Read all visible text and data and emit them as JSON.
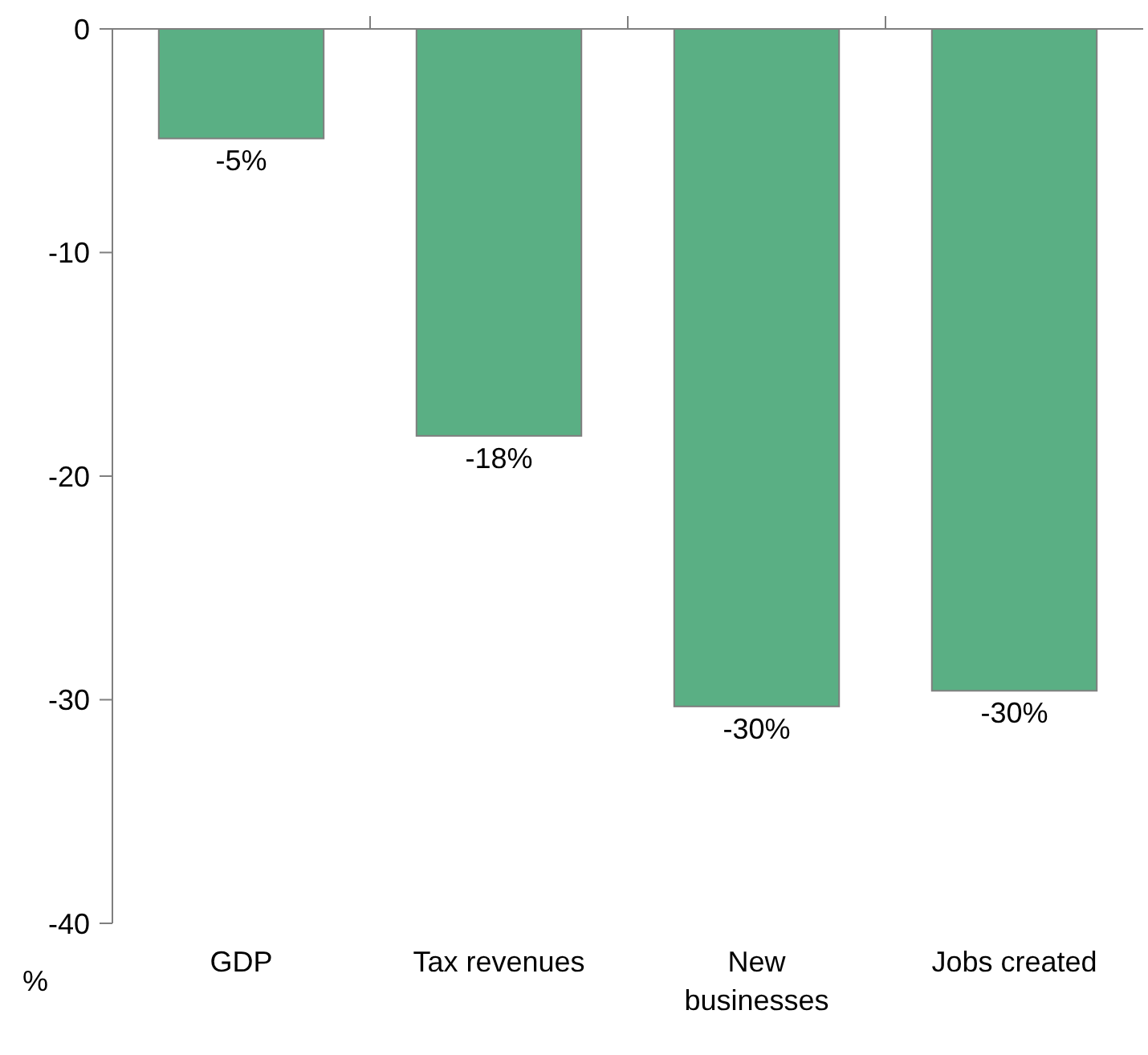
{
  "chart_data": {
    "type": "bar",
    "ylabel": "%",
    "categories": [
      "GDP",
      "Tax revenues",
      "New businesses",
      "Jobs created"
    ],
    "values": [
      -4.9,
      -18.2,
      -30.3,
      -29.6
    ],
    "value_labels": [
      "-5%",
      "-18%",
      "-30%",
      "-30%"
    ],
    "color": "#5aaf84",
    "ylim": [
      -40,
      0
    ],
    "yticks": [
      -40,
      -30,
      -20,
      -10,
      0
    ],
    "grid": false
  }
}
